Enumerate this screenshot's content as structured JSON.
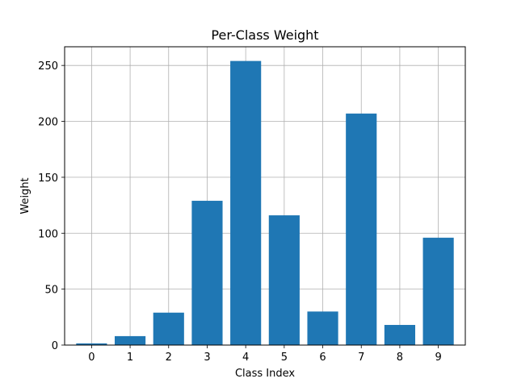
{
  "chart_data": {
    "type": "bar",
    "title": "Per-Class Weight",
    "xlabel": "Class Index",
    "ylabel": "Weight",
    "categories": [
      "0",
      "1",
      "2",
      "3",
      "4",
      "5",
      "6",
      "7",
      "8",
      "9"
    ],
    "values": [
      1.5,
      8,
      29,
      129,
      254,
      116,
      30,
      207,
      18,
      96
    ],
    "ylim": [
      0,
      266.7
    ],
    "yticks": [
      0,
      50,
      100,
      150,
      200,
      250
    ],
    "grid": true,
    "bar_color": "#1f77b4"
  }
}
